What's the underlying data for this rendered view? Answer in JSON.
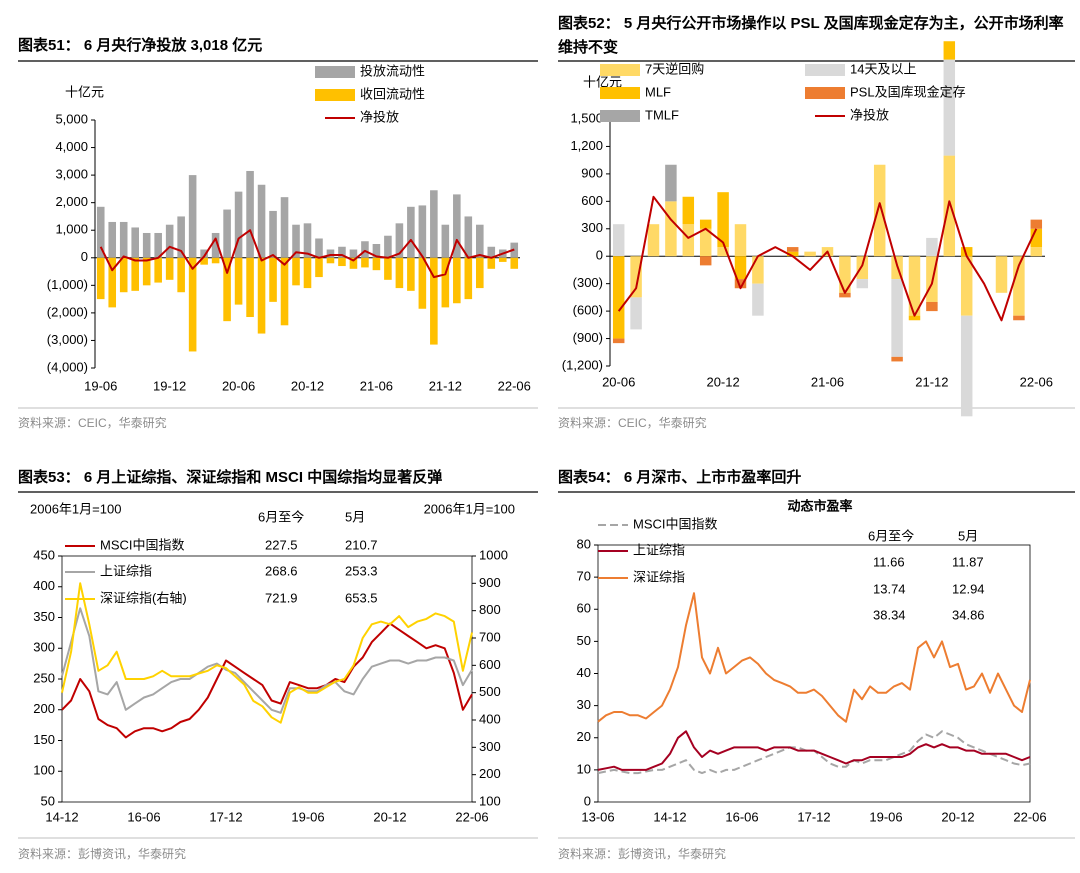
{
  "chart_data": [
    {
      "type": "bar",
      "title": "图表51：  6 月央行净投放 3,018 亿元",
      "y_label": "十亿元",
      "source": "资料来源：CEIC，华泰研究",
      "categories": [
        "19-06",
        null,
        null,
        null,
        null,
        null,
        "19-12",
        null,
        null,
        null,
        null,
        null,
        "20-06",
        null,
        null,
        null,
        null,
        null,
        "20-12",
        null,
        null,
        null,
        null,
        null,
        "21-06",
        null,
        null,
        null,
        null,
        null,
        "21-12",
        null,
        null,
        null,
        null,
        null,
        "22-06"
      ],
      "ylim": [
        -4000,
        5000
      ],
      "yticks": [
        {
          "value": -4000,
          "label": "(4,000)"
        },
        {
          "value": -3000,
          "label": "(3,000)"
        },
        {
          "value": -2000,
          "label": "(2,000)"
        },
        {
          "value": -1000,
          "label": "(1,000)"
        },
        0,
        {
          "value": 1000,
          "label": "1,000"
        },
        {
          "value": 2000,
          "label": "2,000"
        },
        {
          "value": 3000,
          "label": "3,000"
        },
        {
          "value": 4000,
          "label": "4,000"
        },
        {
          "value": 5000,
          "label": "5,000"
        }
      ],
      "series": [
        {
          "name": "投放流动性",
          "type": "bar",
          "color": "#a5a5a5",
          "values": [
            1850,
            1300,
            1300,
            1100,
            900,
            900,
            1200,
            1500,
            3000,
            300,
            900,
            1750,
            2400,
            3150,
            2650,
            1700,
            2200,
            1200,
            1250,
            700,
            300,
            400,
            300,
            600,
            500,
            800,
            1250,
            1850,
            1900,
            2450,
            1200,
            2300,
            1500,
            1200,
            400,
            300,
            550
          ]
        },
        {
          "name": "收回流动性",
          "type": "bar",
          "color": "#ffc000",
          "values": [
            -1500,
            -1800,
            -1250,
            -1200,
            -1000,
            -900,
            -800,
            -1250,
            -3400,
            -250,
            -200,
            -2300,
            -1700,
            -2150,
            -2750,
            -1600,
            -2450,
            -1000,
            -1100,
            -700,
            -200,
            -300,
            -400,
            -350,
            -450,
            -800,
            -1100,
            -1200,
            -1850,
            -3150,
            -1800,
            -1650,
            -1500,
            -1100,
            -400,
            -150,
            -400
          ]
        },
        {
          "name": "净投放",
          "type": "line",
          "color": "#c00000",
          "values": [
            400,
            -450,
            50,
            -100,
            -100,
            0,
            400,
            250,
            -400,
            50,
            700,
            -550,
            700,
            1000,
            -100,
            100,
            -250,
            200,
            150,
            0,
            100,
            100,
            -100,
            250,
            50,
            0,
            150,
            650,
            50,
            -700,
            -600,
            650,
            0,
            100,
            0,
            150,
            300
          ]
        }
      ]
    },
    {
      "type": "bar",
      "title": "图表52：  5 月央行公开市场操作以 PSL 及国库现金定存为主，公开市场利率维持不变",
      "y_label": "十亿元",
      "source": "资料来源：CEIC，华泰研究",
      "categories": [
        "20-06",
        null,
        null,
        null,
        null,
        null,
        "20-12",
        null,
        null,
        null,
        null,
        null,
        "21-06",
        null,
        null,
        null,
        null,
        null,
        "21-12",
        null,
        null,
        null,
        null,
        null,
        "22-06"
      ],
      "ylim": [
        -1200,
        1500
      ],
      "yticks": [
        {
          "value": -1200,
          "label": "(1,200)"
        },
        {
          "value": -900,
          "label": "(900)"
        },
        {
          "value": -600,
          "label": "(600)"
        },
        {
          "value": -300,
          "label": "(300)"
        },
        0,
        300,
        600,
        900,
        {
          "value": 1200,
          "label": "1,200"
        },
        {
          "value": 1500,
          "label": "1,500"
        }
      ],
      "series": [
        {
          "name": "7天逆回购",
          "type": "bar",
          "color": "#ffd966",
          "values": [
            0,
            -450,
            350,
            600,
            350,
            300,
            100,
            350,
            -300,
            0,
            0,
            50,
            100,
            -400,
            -250,
            1000,
            -250,
            -650,
            -500,
            1100,
            -650,
            0,
            -400,
            -650,
            100
          ]
        },
        {
          "name": "14天及以上",
          "type": "bar",
          "color": "#d9d9d9",
          "values": [
            350,
            -350,
            0,
            0,
            0,
            0,
            0,
            0,
            -350,
            0,
            0,
            0,
            0,
            0,
            -100,
            0,
            -850,
            0,
            200,
            1050,
            -1100,
            0,
            0,
            0,
            0
          ]
        },
        {
          "name": "MLF",
          "type": "bar",
          "color": "#ffc000",
          "values": [
            -900,
            0,
            0,
            0,
            300,
            100,
            600,
            -250,
            0,
            0,
            50,
            0,
            0,
            0,
            0,
            0,
            0,
            -50,
            0,
            200,
            100,
            0,
            0,
            0,
            200
          ]
        },
        {
          "name": "PSL及国库现金定存",
          "type": "bar",
          "color": "#ed7d31",
          "values": [
            -50,
            0,
            0,
            0,
            0,
            -100,
            0,
            -100,
            0,
            0,
            50,
            0,
            0,
            -50,
            0,
            0,
            -50,
            0,
            -100,
            0,
            0,
            0,
            0,
            -50,
            100
          ]
        },
        {
          "name": "TMLF",
          "type": "bar",
          "color": "#a6a6a6",
          "values": [
            0,
            0,
            0,
            400,
            0,
            0,
            0,
            0,
            0,
            0,
            0,
            0,
            0,
            0,
            0,
            0,
            0,
            0,
            0,
            0,
            0,
            0,
            0,
            0,
            0
          ]
        },
        {
          "name": "净投放",
          "type": "line",
          "color": "#c00000",
          "values": [
            -600,
            -350,
            650,
            400,
            200,
            300,
            150,
            -350,
            0,
            100,
            0,
            -150,
            50,
            -400,
            -100,
            580,
            -100,
            -650,
            -300,
            600,
            0,
            -300,
            -700,
            -100,
            300
          ]
        }
      ]
    },
    {
      "type": "line",
      "title": "图表53：  6 月上证综指、深证综指和 MSCI 中国综指均显著反弹",
      "y_label": "2006年1月=100",
      "y2_label": "2006年1月=100",
      "source": "资料来源：彭博资讯，华泰研究",
      "categories": [
        "14-12",
        null,
        null,
        null,
        null,
        null,
        null,
        null,
        null,
        "16-06",
        null,
        null,
        null,
        null,
        null,
        null,
        null,
        null,
        "17-12",
        null,
        null,
        null,
        null,
        null,
        null,
        null,
        null,
        "19-06",
        null,
        null,
        null,
        null,
        null,
        null,
        null,
        null,
        "20-12",
        null,
        null,
        null,
        null,
        null,
        null,
        null,
        null,
        "22-06"
      ],
      "ylim": [
        50,
        450
      ],
      "yticks": [
        50,
        100,
        150,
        200,
        250,
        300,
        350,
        400,
        450
      ],
      "y2lim": [
        100,
        1000
      ],
      "y2ticks": [
        100,
        200,
        300,
        400,
        500,
        600,
        700,
        800,
        900,
        1000
      ],
      "table_header": [
        "6月至今",
        "5月"
      ],
      "table_rows": [
        [
          227.5,
          210.7
        ],
        [
          268.6,
          253.3
        ],
        [
          721.9,
          653.5
        ]
      ],
      "series": [
        {
          "name": "MSCI中国指数",
          "color": "#c00000",
          "values": [
            200,
            215,
            250,
            230,
            185,
            175,
            170,
            155,
            165,
            170,
            170,
            165,
            170,
            180,
            185,
            200,
            220,
            250,
            280,
            270,
            260,
            250,
            240,
            215,
            210,
            245,
            240,
            235,
            235,
            240,
            250,
            245,
            270,
            285,
            310,
            325,
            340,
            330,
            320,
            310,
            300,
            305,
            300,
            260,
            200,
            225
          ]
        },
        {
          "name": "上证综指",
          "color": "#a6a6a6",
          "values": [
            255,
            310,
            365,
            320,
            230,
            225,
            245,
            200,
            210,
            220,
            225,
            235,
            245,
            250,
            250,
            260,
            270,
            275,
            265,
            260,
            245,
            230,
            215,
            200,
            195,
            235,
            235,
            230,
            230,
            240,
            245,
            230,
            225,
            250,
            270,
            275,
            280,
            280,
            275,
            280,
            280,
            285,
            285,
            280,
            240,
            265
          ]
        },
        {
          "name": "深证综指(右轴)",
          "color": "#ffd200",
          "axis": "y2",
          "values": [
            500,
            650,
            900,
            750,
            580,
            600,
            650,
            550,
            550,
            550,
            560,
            580,
            560,
            560,
            560,
            570,
            580,
            600,
            590,
            560,
            530,
            470,
            450,
            410,
            390,
            500,
            520,
            500,
            500,
            520,
            540,
            550,
            600,
            700,
            750,
            760,
            750,
            780,
            740,
            760,
            770,
            790,
            780,
            760,
            580,
            720
          ]
        }
      ]
    },
    {
      "type": "line",
      "title": "图表54：  6 月深市、上市市盈率回升",
      "chart_title": "动态市盈率",
      "source": "资料来源：彭博资讯，华泰研究",
      "categories": [
        "13-06",
        null,
        null,
        null,
        null,
        null,
        null,
        null,
        null,
        "14-12",
        null,
        null,
        null,
        null,
        null,
        null,
        null,
        null,
        "16-06",
        null,
        null,
        null,
        null,
        null,
        null,
        null,
        null,
        "17-12",
        null,
        null,
        null,
        null,
        null,
        null,
        null,
        null,
        "19-06",
        null,
        null,
        null,
        null,
        null,
        null,
        null,
        null,
        "20-12",
        null,
        null,
        null,
        null,
        null,
        null,
        null,
        null,
        "22-06"
      ],
      "ylim": [
        0,
        80
      ],
      "yticks": [
        0,
        10,
        20,
        30,
        40,
        50,
        60,
        70,
        80
      ],
      "table_header": [
        "6月至今",
        "5月"
      ],
      "table_rows": [
        [
          11.66,
          11.87
        ],
        [
          13.74,
          12.94
        ],
        [
          38.34,
          34.86
        ]
      ],
      "series": [
        {
          "name": "MSCI中国指数",
          "color": "#a6a6a6",
          "dash": true,
          "values": [
            9,
            9.5,
            10,
            9.5,
            9,
            9,
            9.5,
            10,
            10,
            11,
            12,
            13,
            10,
            9,
            10,
            9,
            10,
            10,
            11,
            12,
            13,
            14,
            15,
            16,
            17,
            17,
            16,
            16,
            14,
            12,
            11,
            11,
            13,
            12,
            13,
            13,
            13,
            14,
            15,
            16,
            19,
            21,
            20,
            22,
            21,
            20,
            18,
            17,
            16,
            15,
            14,
            13,
            12,
            11.5,
            12
          ]
        },
        {
          "name": "上证综指",
          "color": "#a50021",
          "values": [
            10,
            10.5,
            11,
            10,
            10,
            10,
            10,
            11,
            12,
            15,
            20,
            22,
            17,
            14,
            16,
            15,
            16,
            17,
            17,
            17,
            17,
            16,
            17,
            17,
            17,
            16,
            16,
            16,
            15,
            14,
            13,
            12,
            13,
            13,
            14,
            14,
            14,
            14,
            14,
            15,
            17,
            18,
            17,
            18,
            17,
            17,
            16,
            16,
            15,
            15,
            15,
            15,
            14,
            13,
            14
          ]
        },
        {
          "name": "深证综指",
          "color": "#ed7d31",
          "values": [
            25,
            27,
            28,
            28,
            27,
            27,
            26,
            28,
            30,
            35,
            42,
            55,
            65,
            45,
            40,
            48,
            40,
            42,
            44,
            45,
            43,
            40,
            38,
            37,
            36,
            34,
            34,
            35,
            33,
            30,
            27,
            25,
            35,
            32,
            36,
            34,
            34,
            36,
            37,
            35,
            48,
            50,
            45,
            50,
            42,
            43,
            35,
            36,
            40,
            34,
            40,
            35,
            30,
            28,
            38
          ]
        }
      ]
    }
  ]
}
